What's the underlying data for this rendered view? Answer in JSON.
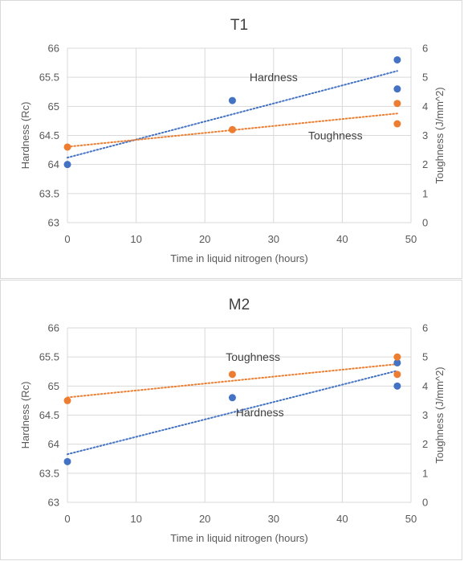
{
  "chart_data": [
    {
      "type": "scatter",
      "title": "T1",
      "xlabel": "Time in liquid nitrogen (hours)",
      "ylabel": "Hardness (Rc)",
      "y2label": "Toughness (J/mm^2)",
      "xlim": [
        0,
        50
      ],
      "ylim": [
        63,
        66
      ],
      "y2lim": [
        0,
        6
      ],
      "xticks": [
        "0",
        "10",
        "20",
        "30",
        "40",
        "50"
      ],
      "yticks": [
        "63",
        "63.5",
        "64",
        "64.5",
        "65",
        "65.5",
        "66"
      ],
      "y2ticks": [
        "0",
        "1",
        "2",
        "3",
        "4",
        "5",
        "6"
      ],
      "grid": true,
      "series": [
        {
          "name": "Hardness",
          "axis": "left",
          "color": "#4472c4",
          "trendline": "linear",
          "points": [
            [
              0,
              64.0
            ],
            [
              24,
              65.1
            ],
            [
              48,
              65.8
            ],
            [
              48,
              65.3
            ]
          ]
        },
        {
          "name": "Toughness",
          "axis": "right",
          "color": "#ed7d31",
          "trendline": "linear",
          "points": [
            [
              0,
              2.6
            ],
            [
              24,
              3.2
            ],
            [
              48,
              4.1
            ],
            [
              48,
              3.4
            ]
          ]
        }
      ],
      "annotations": [
        {
          "text": "Hardness",
          "x": 30,
          "y": 65.5,
          "axis": "left"
        },
        {
          "text": "Toughness",
          "x": 39,
          "y": 64.5,
          "axis": "left"
        }
      ]
    },
    {
      "type": "scatter",
      "title": "M2",
      "xlabel": "Time in liquid nitrogen (hours)",
      "ylabel": "Hardness (Rc)",
      "y2label": "Toughness (J/mm^2)",
      "xlim": [
        0,
        50
      ],
      "ylim": [
        63,
        66
      ],
      "y2lim": [
        0,
        6
      ],
      "xticks": [
        "0",
        "10",
        "20",
        "30",
        "40",
        "50"
      ],
      "yticks": [
        "63",
        "63.5",
        "64",
        "64.5",
        "65",
        "65.5",
        "66"
      ],
      "y2ticks": [
        "0",
        "1",
        "2",
        "3",
        "4",
        "5",
        "6"
      ],
      "grid": true,
      "series": [
        {
          "name": "Hardness",
          "axis": "left",
          "color": "#4472c4",
          "trendline": "linear",
          "points": [
            [
              0,
              63.7
            ],
            [
              24,
              64.8
            ],
            [
              48,
              65.4
            ],
            [
              48,
              65.0
            ]
          ]
        },
        {
          "name": "Toughness",
          "axis": "right",
          "color": "#ed7d31",
          "trendline": "linear",
          "points": [
            [
              0,
              3.5
            ],
            [
              24,
              4.4
            ],
            [
              48,
              5.0
            ],
            [
              48,
              4.4
            ]
          ]
        }
      ],
      "annotations": [
        {
          "text": "Toughness",
          "x": 27,
          "y": 65.5,
          "axis": "left"
        },
        {
          "text": "Hardness",
          "x": 28,
          "y": 64.55,
          "axis": "left"
        }
      ]
    }
  ]
}
